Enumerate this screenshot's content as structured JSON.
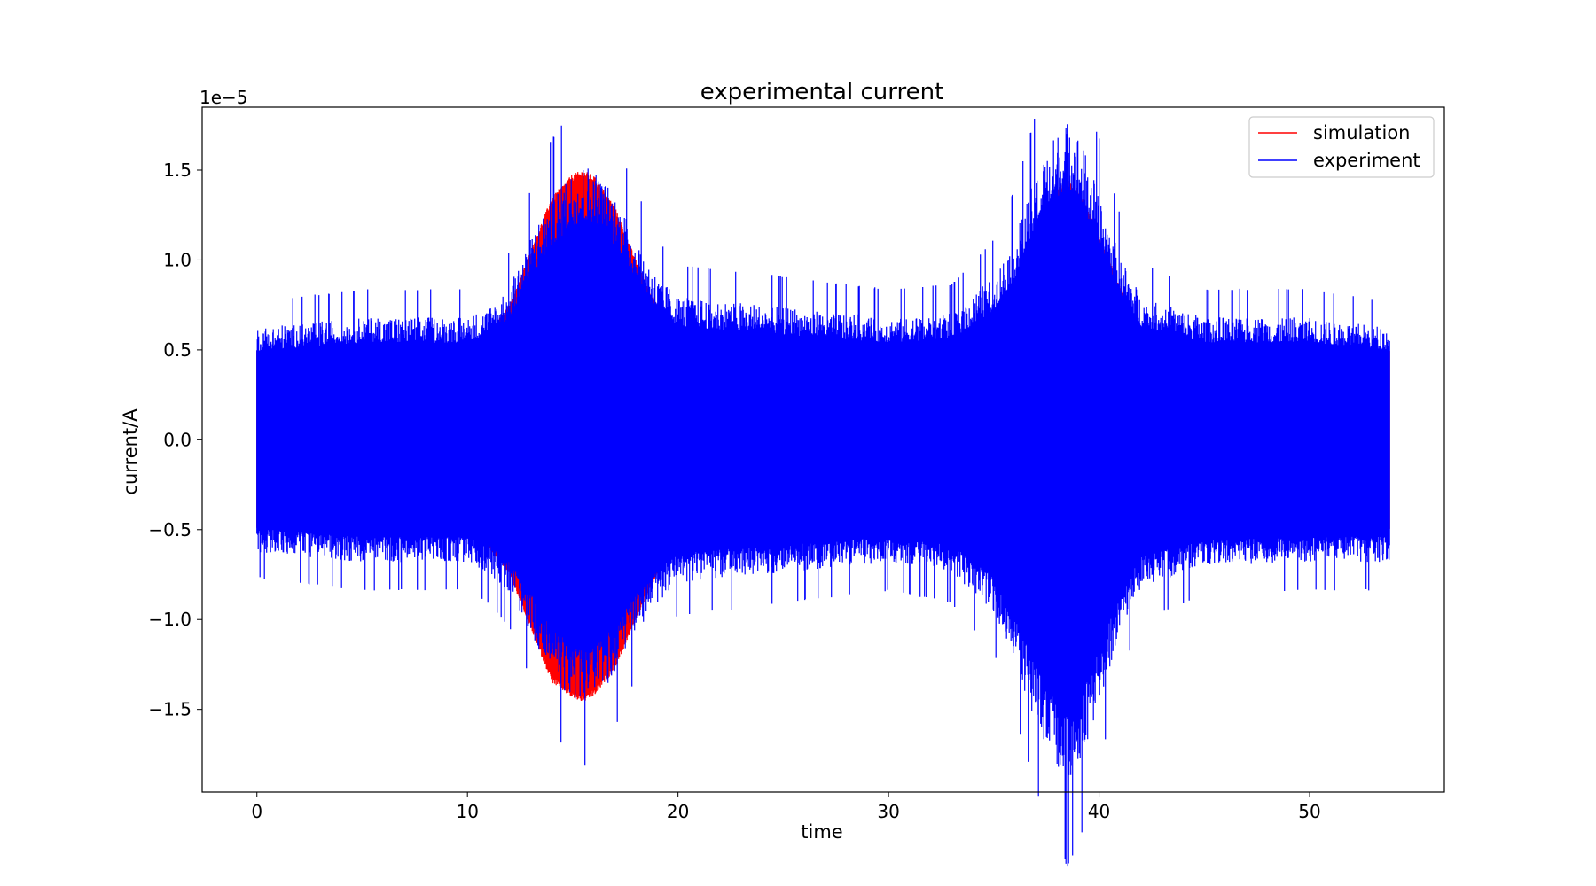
{
  "chart_data": {
    "type": "line",
    "title": "experimental current",
    "xlabel": "time",
    "ylabel": "current/A",
    "y_scale_label": "1e−5",
    "y_multiplier": 1e-05,
    "xlim": [
      -2.6,
      56.4
    ],
    "ylim": [
      -1.96,
      1.85
    ],
    "x_ticks": [
      0,
      10,
      20,
      30,
      40,
      50
    ],
    "x_tick_labels": [
      "0",
      "10",
      "20",
      "30",
      "40",
      "50"
    ],
    "y_ticks": [
      -1.5,
      -1.0,
      -0.5,
      0.0,
      0.5,
      1.0,
      1.5
    ],
    "y_tick_labels": [
      "−1.5",
      "−1.0",
      "−0.5",
      "0.0",
      "0.5",
      "1.0",
      "1.5"
    ],
    "grid": false,
    "legend_position": "top-right",
    "series": [
      {
        "name": "simulation",
        "color": "#ff0000",
        "style": "oscillation envelope",
        "x": [
          0,
          5,
          10,
          11,
          12,
          13,
          14,
          15,
          15.5,
          16,
          17,
          18,
          19,
          20,
          25,
          30,
          33,
          35,
          36,
          37,
          38,
          38.5,
          39,
          40,
          41,
          42,
          45,
          50,
          53.8
        ],
        "upper": [
          0.5,
          0.5,
          0.51,
          0.6,
          0.75,
          1.05,
          1.35,
          1.48,
          1.5,
          1.47,
          1.3,
          1.0,
          0.75,
          0.6,
          0.5,
          0.5,
          0.52,
          0.7,
          0.9,
          1.15,
          1.4,
          1.45,
          1.4,
          1.15,
          0.85,
          0.6,
          0.5,
          0.5,
          0.5
        ],
        "lower": [
          -0.5,
          -0.5,
          -0.51,
          -0.6,
          -0.75,
          -1.05,
          -1.35,
          -1.44,
          -1.46,
          -1.43,
          -1.28,
          -1.0,
          -0.75,
          -0.6,
          -0.5,
          -0.5,
          -0.52,
          -0.7,
          -0.9,
          -1.15,
          -1.4,
          -1.45,
          -1.4,
          -1.15,
          -0.85,
          -0.6,
          -0.5,
          -0.5,
          -0.5
        ]
      },
      {
        "name": "experiment",
        "color": "#0000ff",
        "style": "noisy oscillation envelope",
        "x": [
          0,
          5,
          10,
          11,
          12,
          13,
          14,
          15,
          15.5,
          16,
          17,
          18,
          19,
          20,
          25,
          30,
          33,
          35,
          36,
          37,
          38,
          38.5,
          39,
          40,
          41,
          42,
          45,
          50,
          53.8
        ],
        "upper": [
          0.55,
          0.6,
          0.6,
          0.65,
          0.75,
          1.0,
          1.2,
          1.32,
          1.35,
          1.33,
          1.2,
          1.0,
          0.8,
          0.7,
          0.65,
          0.6,
          0.62,
          0.8,
          1.0,
          1.3,
          1.5,
          1.55,
          1.5,
          1.2,
          0.9,
          0.7,
          0.6,
          0.6,
          0.55
        ],
        "lower": [
          -0.55,
          -0.6,
          -0.6,
          -0.65,
          -0.75,
          -0.95,
          -1.15,
          -1.28,
          -1.3,
          -1.28,
          -1.15,
          -0.95,
          -0.8,
          -0.7,
          -0.65,
          -0.6,
          -0.65,
          -0.85,
          -1.1,
          -1.4,
          -1.62,
          -1.7,
          -1.62,
          -1.3,
          -0.95,
          -0.72,
          -0.62,
          -0.6,
          -0.6
        ],
        "peak_max": 1.68,
        "peak_min": -1.79
      }
    ]
  }
}
